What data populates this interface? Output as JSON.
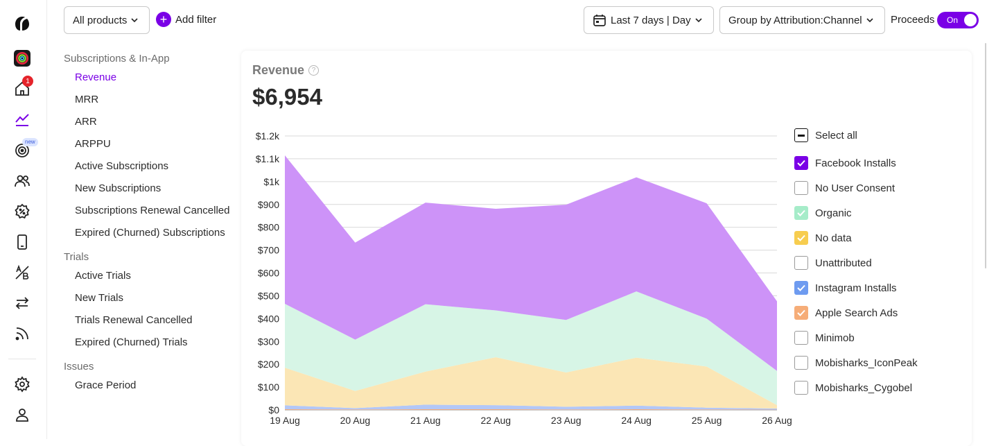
{
  "rail": {
    "home_badge": "1",
    "new_badge": "new",
    "icons": [
      "app-logo-icon",
      "app-avatar-icon",
      "home-icon",
      "analytics-icon",
      "target-icon",
      "users-icon",
      "discount-icon",
      "device-icon",
      "ab-test-icon",
      "swap-icon",
      "feed-icon",
      "settings-icon",
      "profile-icon"
    ]
  },
  "topbar": {
    "products_label": "All products",
    "add_filter_label": "Add filter",
    "date_label": "Last 7 days | Day",
    "group_label": "Group by Attribution:Channel",
    "proceeds_label": "Proceeds",
    "toggle_label": "On"
  },
  "menu": {
    "groups": [
      {
        "title": "Subscriptions & In-App",
        "items": [
          "Revenue",
          "MRR",
          "ARR",
          "ARPPU",
          "Active Subscriptions",
          "New Subscriptions",
          "Subscriptions Renewal Cancelled",
          "Expired (Churned) Subscriptions"
        ]
      },
      {
        "title": "Trials",
        "items": [
          "Active Trials",
          "New Trials",
          "Trials Renewal Cancelled",
          "Expired (Churned) Trials"
        ]
      },
      {
        "title": "Issues",
        "items": [
          "Grace Period"
        ]
      }
    ],
    "active_item": "Revenue"
  },
  "card": {
    "title": "Revenue",
    "value": "$6,954"
  },
  "legend": {
    "select_all": "Select all",
    "items": [
      {
        "label": "Facebook Installs",
        "checked": true,
        "color": "#7a00e6"
      },
      {
        "label": "No User Consent",
        "checked": false,
        "color": ""
      },
      {
        "label": "Organic",
        "checked": true,
        "color": "#a6ecc9"
      },
      {
        "label": "No data",
        "checked": true,
        "color": "#f7cd4f"
      },
      {
        "label": "Unattributed",
        "checked": false,
        "color": ""
      },
      {
        "label": "Instagram Installs",
        "checked": true,
        "color": "#6e9bf0"
      },
      {
        "label": "Apple Search Ads",
        "checked": true,
        "color": "#f6ad78"
      },
      {
        "label": "Minimob",
        "checked": false,
        "color": ""
      },
      {
        "label": "Mobisharks_IconPeak",
        "checked": false,
        "color": ""
      },
      {
        "label": "Mobisharks_Cygobel",
        "checked": false,
        "color": ""
      }
    ]
  },
  "chart_data": {
    "type": "area",
    "stacked": true,
    "x": [
      "19 Aug",
      "20 Aug",
      "21 Aug",
      "22 Aug",
      "23 Aug",
      "24 Aug",
      "25 Aug",
      "26 Aug"
    ],
    "y_ticks": [
      "$0",
      "$100",
      "$200",
      "$300",
      "$400",
      "$500",
      "$600",
      "$700",
      "$800",
      "$900",
      "$1k",
      "$1.1k",
      "$1.2k"
    ],
    "ylim": [
      0,
      1200
    ],
    "grid": true,
    "series": [
      {
        "name": "Apple Search Ads",
        "color": "#f6ad78",
        "values": [
          3,
          2,
          3,
          3,
          2,
          3,
          2,
          1
        ]
      },
      {
        "name": "Instagram Installs",
        "color": "#b3c7f7",
        "values": [
          17,
          6,
          20,
          18,
          12,
          16,
          8,
          5
        ]
      },
      {
        "name": "No data",
        "color": "#fbe6b5",
        "values": [
          165,
          75,
          145,
          210,
          150,
          210,
          180,
          15
        ]
      },
      {
        "name": "Organic",
        "color": "#d7f5e6",
        "values": [
          280,
          225,
          295,
          205,
          230,
          290,
          210,
          150
        ]
      },
      {
        "name": "Facebook Installs",
        "color": "#cd93f8",
        "values": [
          650,
          425,
          445,
          445,
          505,
          500,
          505,
          305
        ]
      }
    ]
  }
}
